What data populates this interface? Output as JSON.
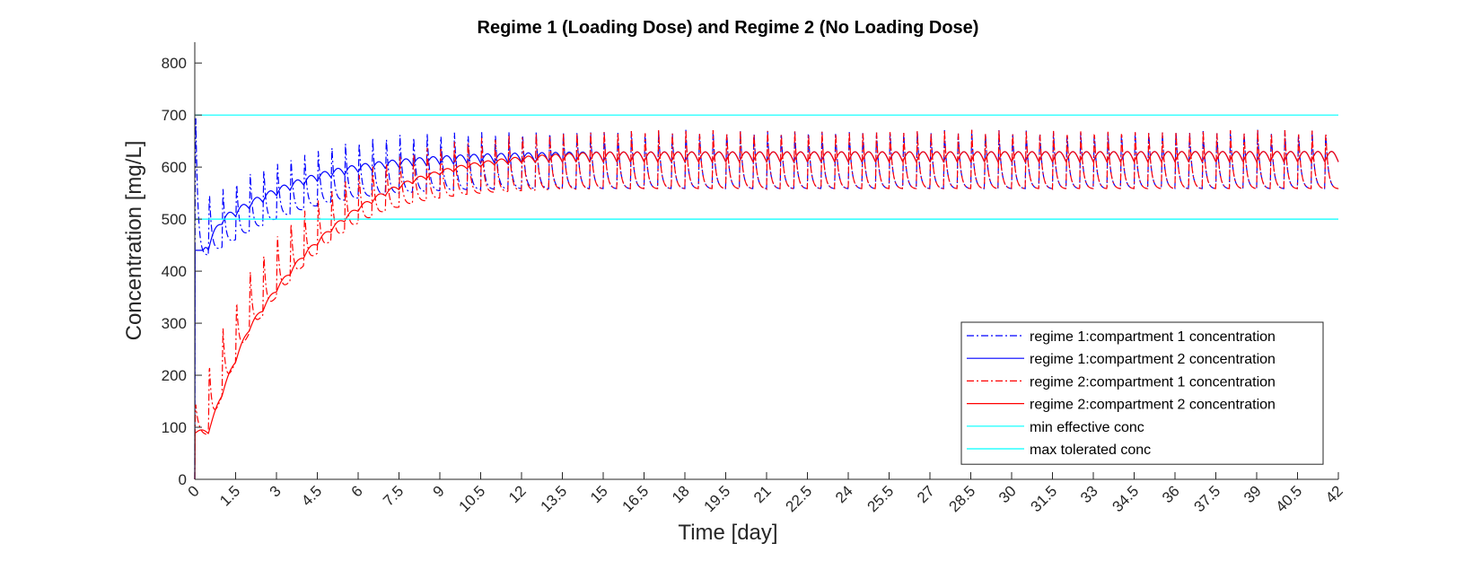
{
  "chart_data": {
    "type": "line",
    "title": "Regime 1 (Loading Dose) and Regime 2 (No Loading Dose)",
    "xlabel": "Time [day]",
    "ylabel": "Concentration [mg/L]",
    "xlim": [
      0,
      42
    ],
    "ylim": [
      0,
      840
    ],
    "xticks": [
      "0",
      "1.5",
      "3",
      "4.5",
      "6",
      "7.5",
      "9",
      "10.5",
      "12",
      "13.5",
      "15",
      "16.5",
      "18",
      "19.5",
      "21",
      "22.5",
      "24",
      "25.5",
      "27",
      "28.5",
      "30",
      "31.5",
      "33",
      "34.5",
      "36",
      "37.5",
      "39",
      "40.5",
      "42"
    ],
    "yticks": [
      "0",
      "100",
      "200",
      "300",
      "400",
      "500",
      "600",
      "700",
      "800"
    ],
    "dosing_interval_day": 0.5,
    "legend_position": "bottom-right",
    "grid": false,
    "series": [
      {
        "name": "regime 1:compartment 1 concentration",
        "color": "#0000ff",
        "style": "dashdot",
        "peaks": [
          [
            0.05,
            700
          ],
          [
            0.5,
            555
          ],
          [
            1,
            560
          ],
          [
            1.5,
            575
          ],
          [
            2,
            590
          ],
          [
            3,
            610
          ],
          [
            4,
            628
          ],
          [
            5,
            642
          ],
          [
            6,
            652
          ],
          [
            7,
            660
          ],
          [
            8,
            664
          ],
          [
            9,
            667
          ],
          [
            10,
            669
          ],
          [
            11,
            670
          ],
          [
            12,
            671
          ],
          [
            13,
            672
          ],
          [
            14,
            672
          ],
          [
            42,
            672
          ]
        ],
        "troughs": [
          [
            0.5,
            430
          ],
          [
            1,
            445
          ],
          [
            1.5,
            460
          ],
          [
            2,
            475
          ],
          [
            3,
            500
          ],
          [
            4,
            518
          ],
          [
            5,
            532
          ],
          [
            6,
            540
          ],
          [
            7,
            547
          ],
          [
            8,
            551
          ],
          [
            9,
            554
          ],
          [
            10,
            556
          ],
          [
            11,
            557
          ],
          [
            12,
            558
          ],
          [
            13,
            558
          ],
          [
            14,
            558
          ],
          [
            42,
            558
          ]
        ]
      },
      {
        "name": "regime 1:compartment 2 concentration",
        "color": "#0000ff",
        "style": "solid",
        "peaks": [
          [
            0.3,
            440
          ],
          [
            1,
            505
          ],
          [
            1.5,
            520
          ],
          [
            2,
            535
          ],
          [
            3,
            560
          ],
          [
            4,
            580
          ],
          [
            5,
            595
          ],
          [
            6,
            605
          ],
          [
            7,
            612
          ],
          [
            8,
            617
          ],
          [
            9,
            621
          ],
          [
            10,
            624
          ],
          [
            11,
            626
          ],
          [
            12,
            627
          ],
          [
            13,
            628
          ],
          [
            14,
            629
          ],
          [
            42,
            630
          ]
        ],
        "troughs": [
          [
            0.5,
            440
          ],
          [
            1,
            490
          ],
          [
            1.5,
            505
          ],
          [
            2,
            520
          ],
          [
            3,
            545
          ],
          [
            4,
            565
          ],
          [
            5,
            580
          ],
          [
            6,
            590
          ],
          [
            7,
            597
          ],
          [
            8,
            602
          ],
          [
            9,
            605
          ],
          [
            10,
            607
          ],
          [
            11,
            608
          ],
          [
            12,
            609
          ],
          [
            13,
            609
          ],
          [
            14,
            610
          ],
          [
            42,
            610
          ]
        ]
      },
      {
        "name": "regime 2:compartment 1 concentration",
        "color": "#ff0000",
        "style": "dashdot",
        "peaks": [
          [
            0.05,
            145
          ],
          [
            0.5,
            220
          ],
          [
            1,
            290
          ],
          [
            1.5,
            340
          ],
          [
            2,
            400
          ],
          [
            3,
            470
          ],
          [
            4,
            520
          ],
          [
            5,
            558
          ],
          [
            6,
            590
          ],
          [
            7,
            612
          ],
          [
            8,
            630
          ],
          [
            9,
            645
          ],
          [
            10,
            655
          ],
          [
            11,
            662
          ],
          [
            12,
            666
          ],
          [
            13,
            669
          ],
          [
            14,
            671
          ],
          [
            15,
            672
          ],
          [
            42,
            672
          ]
        ],
        "troughs": [
          [
            0.5,
            85
          ],
          [
            1,
            160
          ],
          [
            1.5,
            225
          ],
          [
            2,
            280
          ],
          [
            3,
            350
          ],
          [
            4,
            410
          ],
          [
            5,
            458
          ],
          [
            6,
            492
          ],
          [
            7,
            515
          ],
          [
            8,
            530
          ],
          [
            9,
            540
          ],
          [
            10,
            547
          ],
          [
            11,
            551
          ],
          [
            12,
            554
          ],
          [
            13,
            556
          ],
          [
            14,
            557
          ],
          [
            15,
            558
          ],
          [
            42,
            558
          ]
        ]
      },
      {
        "name": "regime 2:compartment 2 concentration",
        "color": "#ff0000",
        "style": "solid",
        "peaks": [
          [
            0.5,
            95
          ],
          [
            1,
            170
          ],
          [
            1.5,
            235
          ],
          [
            2,
            295
          ],
          [
            3,
            370
          ],
          [
            4,
            435
          ],
          [
            5,
            485
          ],
          [
            6,
            525
          ],
          [
            7,
            555
          ],
          [
            8,
            578
          ],
          [
            9,
            594
          ],
          [
            10,
            606
          ],
          [
            11,
            614
          ],
          [
            12,
            620
          ],
          [
            13,
            624
          ],
          [
            14,
            627
          ],
          [
            15,
            629
          ],
          [
            42,
            630
          ]
        ],
        "troughs": [
          [
            0.5,
            88
          ],
          [
            1,
            160
          ],
          [
            1.5,
            225
          ],
          [
            2,
            285
          ],
          [
            3,
            360
          ],
          [
            4,
            425
          ],
          [
            5,
            475
          ],
          [
            6,
            515
          ],
          [
            7,
            545
          ],
          [
            8,
            568
          ],
          [
            9,
            585
          ],
          [
            10,
            597
          ],
          [
            11,
            604
          ],
          [
            12,
            608
          ],
          [
            13,
            610
          ],
          [
            14,
            610
          ],
          [
            15,
            610
          ],
          [
            42,
            610
          ]
        ]
      },
      {
        "name": "min effective conc",
        "color": "#00ffff",
        "style": "solid",
        "x": [
          0,
          42
        ],
        "y": [
          500,
          500
        ]
      },
      {
        "name": "max tolerated conc",
        "color": "#00ffff",
        "style": "solid",
        "x": [
          0,
          42
        ],
        "y": [
          700,
          700
        ]
      }
    ]
  }
}
